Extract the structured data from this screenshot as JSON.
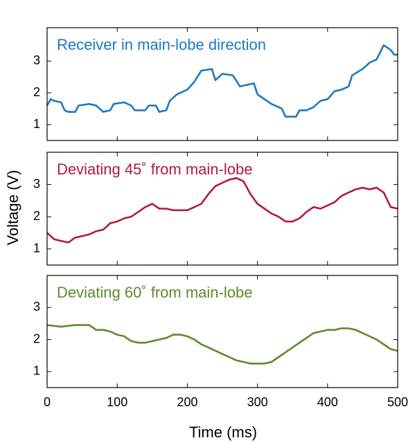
{
  "ylabel": "Voltage (V)",
  "xlabel": "Time (ms)",
  "chart_data": [
    {
      "type": "line",
      "title": "Receiver in main-lobe direction",
      "color": "#1a78c2",
      "x": [
        0,
        5,
        10,
        20,
        25,
        30,
        40,
        45,
        60,
        70,
        80,
        90,
        95,
        110,
        120,
        125,
        140,
        145,
        155,
        160,
        170,
        175,
        185,
        200,
        210,
        220,
        235,
        240,
        250,
        265,
        275,
        295,
        300,
        320,
        335,
        340,
        355,
        360,
        370,
        380,
        390,
        400,
        410,
        420,
        430,
        435,
        450,
        460,
        470,
        480,
        490,
        495,
        500
      ],
      "values": [
        1.6,
        1.8,
        1.75,
        1.7,
        1.45,
        1.4,
        1.4,
        1.6,
        1.65,
        1.6,
        1.4,
        1.45,
        1.65,
        1.7,
        1.6,
        1.45,
        1.45,
        1.6,
        1.6,
        1.4,
        1.45,
        1.75,
        1.95,
        2.1,
        2.35,
        2.7,
        2.75,
        2.4,
        2.6,
        2.55,
        2.2,
        2.3,
        1.95,
        1.65,
        1.5,
        1.25,
        1.25,
        1.45,
        1.45,
        1.55,
        1.75,
        1.8,
        2.05,
        2.1,
        2.2,
        2.55,
        2.75,
        2.95,
        3.05,
        3.5,
        3.35,
        3.2,
        3.2
      ],
      "xlim": [
        0,
        500
      ],
      "ylim": [
        0.5,
        4.05
      ],
      "yticks": [
        1,
        2,
        3
      ]
    },
    {
      "type": "line",
      "title": "Deviating 45˚ from main-lobe",
      "color": "#b3173f",
      "x": [
        0,
        10,
        20,
        30,
        40,
        50,
        60,
        70,
        80,
        90,
        100,
        110,
        120,
        130,
        140,
        150,
        160,
        170,
        180,
        200,
        210,
        220,
        230,
        240,
        250,
        260,
        270,
        280,
        290,
        300,
        310,
        320,
        330,
        340,
        350,
        360,
        370,
        380,
        390,
        400,
        410,
        420,
        430,
        440,
        450,
        460,
        470,
        480,
        490,
        500
      ],
      "values": [
        1.5,
        1.3,
        1.25,
        1.2,
        1.35,
        1.4,
        1.45,
        1.55,
        1.6,
        1.8,
        1.85,
        1.95,
        2.0,
        2.15,
        2.3,
        2.4,
        2.25,
        2.25,
        2.2,
        2.2,
        2.3,
        2.4,
        2.7,
        2.95,
        3.05,
        3.15,
        3.2,
        3.1,
        2.7,
        2.4,
        2.25,
        2.1,
        2.0,
        1.85,
        1.85,
        1.95,
        2.15,
        2.3,
        2.25,
        2.35,
        2.45,
        2.65,
        2.75,
        2.85,
        2.9,
        2.85,
        2.9,
        2.75,
        2.3,
        2.25
      ],
      "xlim": [
        0,
        500
      ],
      "ylim": [
        0.5,
        4.0
      ],
      "yticks": [
        1,
        2,
        3
      ]
    },
    {
      "type": "line",
      "title": "Deviating 60˚ from main-lobe",
      "color": "#5b8a2b",
      "x": [
        0,
        20,
        40,
        60,
        70,
        80,
        90,
        100,
        110,
        120,
        130,
        140,
        150,
        160,
        170,
        180,
        190,
        200,
        210,
        220,
        230,
        240,
        250,
        260,
        270,
        280,
        290,
        300,
        310,
        320,
        330,
        340,
        350,
        360,
        370,
        380,
        390,
        400,
        410,
        420,
        430,
        440,
        450,
        460,
        470,
        480,
        490,
        500
      ],
      "values": [
        2.45,
        2.4,
        2.45,
        2.45,
        2.3,
        2.3,
        2.25,
        2.15,
        2.1,
        1.95,
        1.9,
        1.9,
        1.95,
        2.0,
        2.05,
        2.15,
        2.15,
        2.1,
        2.0,
        1.85,
        1.75,
        1.65,
        1.55,
        1.45,
        1.35,
        1.3,
        1.25,
        1.25,
        1.25,
        1.3,
        1.45,
        1.6,
        1.75,
        1.9,
        2.05,
        2.2,
        2.25,
        2.3,
        2.3,
        2.35,
        2.35,
        2.3,
        2.2,
        2.1,
        2.0,
        1.85,
        1.7,
        1.65
      ],
      "xlim": [
        0,
        500
      ],
      "ylim": [
        0.5,
        4.0
      ],
      "yticks": [
        1,
        2,
        3
      ],
      "xticks": [
        0,
        100,
        200,
        300,
        400,
        500
      ]
    }
  ]
}
